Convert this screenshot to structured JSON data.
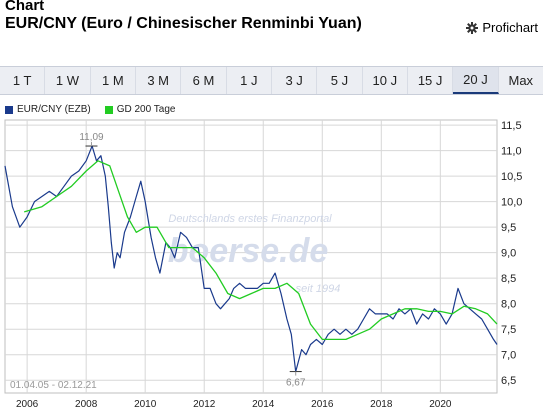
{
  "header": {
    "label": "Chart",
    "title": "EUR/CNY (Euro / Chinesischer Renminbi Yuan)",
    "profichart_label": "Profichart",
    "profichart_icon": "gear-icon"
  },
  "tabs": [
    {
      "label": "1 T",
      "active": false
    },
    {
      "label": "1 W",
      "active": false
    },
    {
      "label": "1 M",
      "active": false
    },
    {
      "label": "3 M",
      "active": false
    },
    {
      "label": "6 M",
      "active": false
    },
    {
      "label": "1 J",
      "active": false
    },
    {
      "label": "3 J",
      "active": false
    },
    {
      "label": "5 J",
      "active": false
    },
    {
      "label": "10 J",
      "active": false
    },
    {
      "label": "15 J",
      "active": false
    },
    {
      "label": "20 J",
      "active": true
    },
    {
      "label": "Max",
      "active": false
    }
  ],
  "colors": {
    "series_main": "#1a3a8c",
    "series_ma": "#22cc22",
    "grid": "#d7d7d7",
    "accent": "#1a3a7a"
  },
  "chart_data": {
    "type": "line",
    "date_range": "01.04.05 - 02.12.21",
    "watermark": [
      "Deutschlands erstes Finanzportal",
      "boerse.de",
      "seit 1994"
    ],
    "xlim": [
      2005.25,
      2021.92
    ],
    "ylim": [
      6.25,
      11.6
    ],
    "x_ticks": [
      "2006",
      "2008",
      "2010",
      "2012",
      "2014",
      "2016",
      "2018",
      "2020"
    ],
    "y_ticks": [
      "11,5",
      "11,0",
      "10,5",
      "10,0",
      "9,5",
      "9,0",
      "8,5",
      "8,0",
      "7,5",
      "7,0",
      "6,5"
    ],
    "annotations": [
      {
        "label": "11,09",
        "x": 2008.18,
        "y": 11.09
      },
      {
        "label": "6,67",
        "x": 2015.1,
        "y": 6.67
      }
    ],
    "series": [
      {
        "name": "EUR/CNY (EZB)",
        "x": [
          2005.25,
          2005.5,
          2005.75,
          2006.0,
          2006.25,
          2006.5,
          2006.75,
          2007.0,
          2007.25,
          2007.5,
          2007.75,
          2008.0,
          2008.2,
          2008.35,
          2008.5,
          2008.65,
          2008.75,
          2008.85,
          2008.95,
          2009.05,
          2009.15,
          2009.3,
          2009.5,
          2009.7,
          2009.85,
          2010.0,
          2010.2,
          2010.35,
          2010.5,
          2010.7,
          2010.85,
          2011.0,
          2011.2,
          2011.4,
          2011.6,
          2011.8,
          2012.0,
          2012.2,
          2012.4,
          2012.55,
          2012.7,
          2012.85,
          2013.0,
          2013.2,
          2013.4,
          2013.6,
          2013.8,
          2014.0,
          2014.2,
          2014.4,
          2014.6,
          2014.8,
          2014.95,
          2015.1,
          2015.3,
          2015.45,
          2015.6,
          2015.8,
          2016.0,
          2016.2,
          2016.4,
          2016.6,
          2016.8,
          2017.0,
          2017.2,
          2017.4,
          2017.6,
          2017.8,
          2018.0,
          2018.2,
          2018.4,
          2018.6,
          2018.8,
          2019.0,
          2019.2,
          2019.4,
          2019.6,
          2019.8,
          2020.0,
          2020.2,
          2020.4,
          2020.6,
          2020.8,
          2021.0,
          2021.2,
          2021.4,
          2021.6,
          2021.8,
          2021.92
        ],
        "y": [
          10.7,
          9.9,
          9.5,
          9.7,
          10.0,
          10.1,
          10.2,
          10.1,
          10.3,
          10.5,
          10.6,
          10.8,
          11.09,
          10.8,
          10.9,
          10.5,
          9.9,
          9.2,
          8.7,
          9.0,
          8.9,
          9.4,
          9.7,
          10.1,
          10.4,
          10.0,
          9.3,
          8.9,
          8.6,
          9.2,
          9.1,
          8.9,
          9.4,
          9.3,
          9.1,
          9.1,
          8.3,
          8.3,
          8.0,
          7.9,
          8.0,
          8.1,
          8.3,
          8.4,
          8.3,
          8.3,
          8.3,
          8.4,
          8.4,
          8.6,
          8.2,
          7.7,
          7.4,
          6.67,
          7.1,
          7.0,
          7.2,
          7.3,
          7.2,
          7.4,
          7.5,
          7.4,
          7.5,
          7.4,
          7.5,
          7.7,
          7.9,
          7.8,
          7.8,
          7.8,
          7.7,
          7.9,
          7.8,
          7.9,
          7.6,
          7.8,
          7.7,
          7.9,
          7.8,
          7.6,
          7.8,
          8.3,
          8.0,
          7.9,
          7.8,
          7.7,
          7.5,
          7.3,
          7.2
        ]
      },
      {
        "name": "GD 200 Tage",
        "x": [
          2005.9,
          2006.5,
          2007.0,
          2007.5,
          2008.0,
          2008.4,
          2008.8,
          2009.1,
          2009.4,
          2009.7,
          2010.0,
          2010.4,
          2010.8,
          2011.2,
          2011.6,
          2012.0,
          2012.4,
          2012.8,
          2013.2,
          2013.6,
          2014.0,
          2014.4,
          2014.8,
          2015.2,
          2015.6,
          2016.0,
          2016.4,
          2016.8,
          2017.2,
          2017.6,
          2018.0,
          2018.4,
          2018.8,
          2019.2,
          2019.6,
          2020.0,
          2020.4,
          2020.8,
          2021.2,
          2021.6,
          2021.92
        ],
        "y": [
          9.8,
          9.9,
          10.1,
          10.3,
          10.6,
          10.8,
          10.7,
          10.2,
          9.7,
          9.4,
          9.5,
          9.5,
          9.1,
          9.1,
          9.1,
          8.9,
          8.6,
          8.2,
          8.1,
          8.2,
          8.3,
          8.3,
          8.4,
          8.2,
          7.6,
          7.3,
          7.3,
          7.3,
          7.4,
          7.5,
          7.7,
          7.8,
          7.9,
          7.9,
          7.85,
          7.85,
          7.8,
          7.95,
          7.9,
          7.8,
          7.6
        ]
      }
    ]
  }
}
